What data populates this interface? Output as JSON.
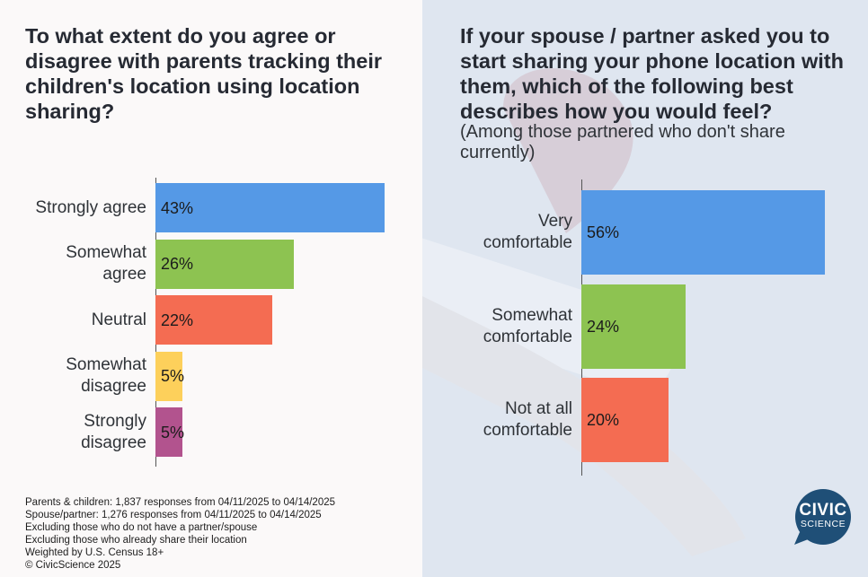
{
  "colors": {
    "blue": "#5599e6",
    "green": "#8dc351",
    "red": "#f46c52",
    "yellow": "#fdd05b",
    "purple": "#b2538e",
    "logo": "#1f4f77"
  },
  "chart_data": [
    {
      "type": "bar",
      "orientation": "horizontal",
      "title": "To what extent do you agree or disagree with parents tracking their children's location using location sharing?",
      "categories": [
        "Strongly agree",
        "Somewhat\nagree",
        "Neutral",
        "Somewhat\ndisagree",
        "Strongly\ndisagree"
      ],
      "values": [
        43,
        26,
        22,
        5,
        5
      ],
      "value_labels": [
        "43%",
        "26%",
        "22%",
        "5%",
        "5%"
      ],
      "bar_colors": [
        "#5599e6",
        "#8dc351",
        "#f46c52",
        "#fdd05b",
        "#b2538e"
      ],
      "xlim": [
        0,
        43
      ]
    },
    {
      "type": "bar",
      "orientation": "horizontal",
      "title": "If your spouse / partner asked you to start sharing your phone location with them, which of the following best describes how you would feel?",
      "subtitle": "(Among those partnered who don't share currently)",
      "categories": [
        "Very\ncomfortable",
        "Somewhat\ncomfortable",
        "Not at all\ncomfortable"
      ],
      "values": [
        56,
        24,
        20
      ],
      "value_labels": [
        "56%",
        "24%",
        "20%"
      ],
      "bar_colors": [
        "#5599e6",
        "#8dc351",
        "#f46c52"
      ],
      "xlim": [
        0,
        56
      ]
    }
  ],
  "footnotes": [
    "Parents & children: 1,837 responses from 04/11/2025 to 04/14/2025",
    "Spouse/partner: 1,276 responses from 04/11/2025 to 04/14/2025",
    "Excluding those who do not have a partner/spouse",
    "Excluding those who already share their location",
    "Weighted by U.S. Census 18+",
    "© CivicScience 2025"
  ],
  "logo": {
    "line1": "CIVIC",
    "line2": "SCIENCE"
  }
}
